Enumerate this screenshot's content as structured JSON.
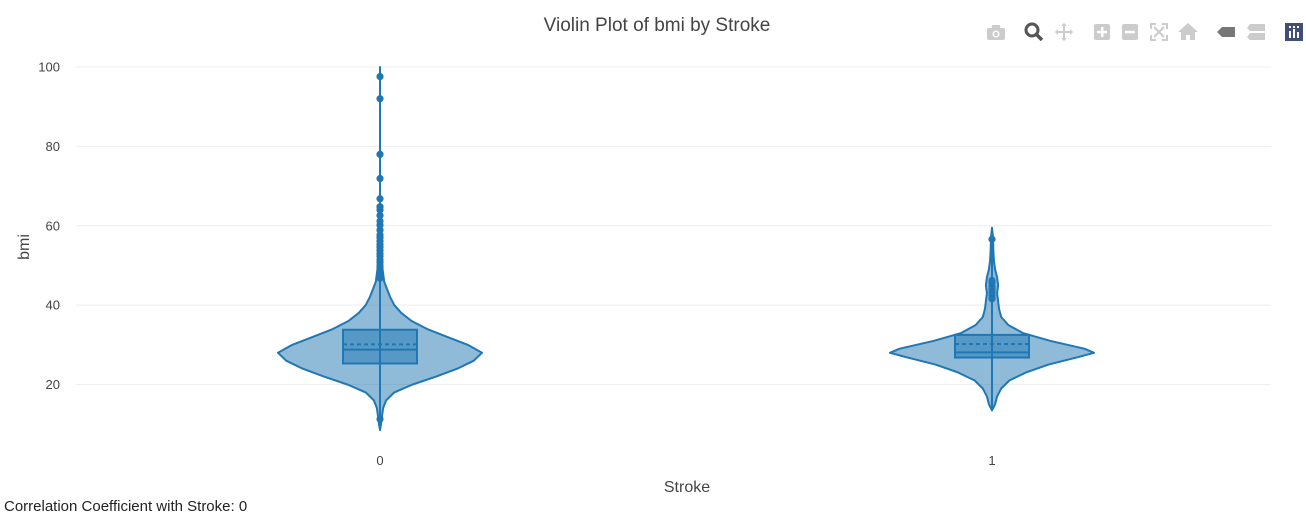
{
  "chart_data": {
    "type": "violin",
    "title": "Violin Plot of bmi by Stroke",
    "xlabel": "Stroke",
    "ylabel": "bmi",
    "categories": [
      "0",
      "1"
    ],
    "ylim": [
      0,
      100
    ],
    "yticks": [
      20,
      40,
      60,
      80,
      100
    ],
    "grid": true,
    "color": "#1f77b4",
    "violins": [
      {
        "category": "0",
        "q1": 25.3,
        "median": 28.8,
        "q3": 33.8,
        "mean": 30.1,
        "whisker_low": 12.6,
        "whisker_high": 46.5,
        "span": [
          8.5,
          100
        ],
        "outliers": [
          11.3,
          46.8,
          47.3,
          47.8,
          48.3,
          48.9,
          49.5,
          50.1,
          50.8,
          51.5,
          52.3,
          53.0,
          53.8,
          54.6,
          55.3,
          56.1,
          57.0,
          57.7,
          58.9,
          60.2,
          61.2,
          62.6,
          64.0,
          64.8,
          66.8,
          71.9,
          78.0,
          92.0,
          97.6
        ],
        "density": [
          [
            8.5,
            0.0
          ],
          [
            10,
            0.01
          ],
          [
            12,
            0.02
          ],
          [
            14,
            0.03
          ],
          [
            16,
            0.06
          ],
          [
            18,
            0.14
          ],
          [
            20,
            0.32
          ],
          [
            22,
            0.55
          ],
          [
            24,
            0.76
          ],
          [
            26,
            0.92
          ],
          [
            28,
            1.0
          ],
          [
            30,
            0.86
          ],
          [
            32,
            0.66
          ],
          [
            34,
            0.46
          ],
          [
            36,
            0.31
          ],
          [
            38,
            0.21
          ],
          [
            40,
            0.14
          ],
          [
            42,
            0.1
          ],
          [
            44,
            0.07
          ],
          [
            46,
            0.04
          ],
          [
            48,
            0.03
          ],
          [
            50,
            0.02
          ],
          [
            55,
            0.01
          ],
          [
            60,
            0.0
          ],
          [
            100,
            0.0
          ]
        ]
      },
      {
        "category": "1",
        "q1": 26.8,
        "median": 28.1,
        "q3": 32.5,
        "mean": 30.2,
        "whisker_low": 19.3,
        "whisker_high": 40.7,
        "span": [
          13.5,
          59.5
        ],
        "outliers": [
          41.6,
          42.4,
          43.2,
          44.0,
          44.8,
          45.6,
          46.2,
          56.6
        ],
        "density": [
          [
            13.5,
            0.0
          ],
          [
            15,
            0.03
          ],
          [
            17,
            0.05
          ],
          [
            19,
            0.09
          ],
          [
            21,
            0.17
          ],
          [
            23,
            0.33
          ],
          [
            25,
            0.55
          ],
          [
            27,
            0.86
          ],
          [
            28,
            1.0
          ],
          [
            29,
            0.91
          ],
          [
            31,
            0.57
          ],
          [
            33,
            0.3
          ],
          [
            35,
            0.16
          ],
          [
            37,
            0.09
          ],
          [
            39,
            0.07
          ],
          [
            41,
            0.06
          ],
          [
            43,
            0.05
          ],
          [
            45,
            0.06
          ],
          [
            47,
            0.05
          ],
          [
            49,
            0.03
          ],
          [
            51,
            0.02
          ],
          [
            53,
            0.015
          ],
          [
            55,
            0.012
          ],
          [
            57,
            0.01
          ],
          [
            59.5,
            0.0
          ]
        ]
      }
    ]
  },
  "footer": {
    "text": "Correlation Coefficient with Stroke: 0"
  },
  "modebar": {
    "buttons": [
      "camera-icon",
      "zoom-icon",
      "pan-icon",
      "zoom-in-icon",
      "zoom-out-icon",
      "autoscale-icon",
      "reset-axes-icon",
      "hover-closest-icon",
      "hover-compare-icon",
      "plotly-logo-icon"
    ]
  }
}
